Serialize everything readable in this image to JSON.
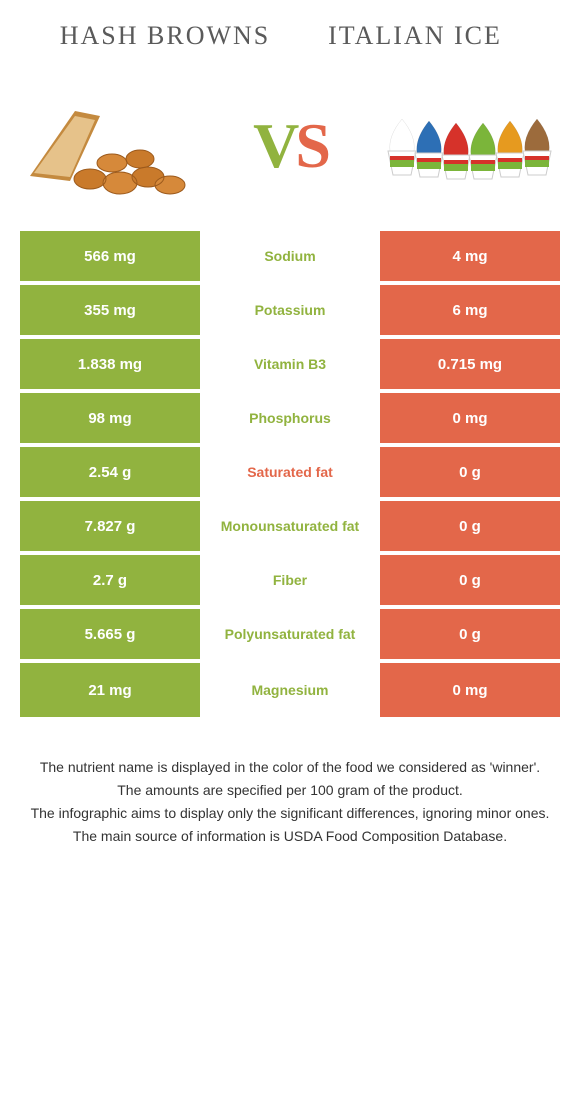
{
  "colors": {
    "left_bg": "#91b33f",
    "right_bg": "#e3674a",
    "row_border": "#ffffff",
    "cell_text": "#ffffff",
    "nutrient_left": "#91b33f",
    "nutrient_right": "#e3674a",
    "title_text": "#5a5a5a",
    "vs_v": "#91b33f",
    "vs_s": "#e3674a",
    "footer_text": "#333333"
  },
  "titles": {
    "left": "Hash browns",
    "right": "Italian ice"
  },
  "vs": {
    "v": "V",
    "s": "S"
  },
  "rows": [
    {
      "left": "566 mg",
      "label": "Sodium",
      "right": "4 mg",
      "winner": "left"
    },
    {
      "left": "355 mg",
      "label": "Potassium",
      "right": "6 mg",
      "winner": "left"
    },
    {
      "left": "1.838 mg",
      "label": "Vitamin B3",
      "right": "0.715 mg",
      "winner": "left"
    },
    {
      "left": "98 mg",
      "label": "Phosphorus",
      "right": "0 mg",
      "winner": "left"
    },
    {
      "left": "2.54 g",
      "label": "Saturated fat",
      "right": "0 g",
      "winner": "right"
    },
    {
      "left": "7.827 g",
      "label": "Monounsaturated fat",
      "right": "0 g",
      "winner": "left"
    },
    {
      "left": "2.7 g",
      "label": "Fiber",
      "right": "0 g",
      "winner": "left"
    },
    {
      "left": "5.665 g",
      "label": "Polyunsaturated fat",
      "right": "0 g",
      "winner": "left"
    },
    {
      "left": "21 mg",
      "label": "Magnesium",
      "right": "0 mg",
      "winner": "left"
    }
  ],
  "footer": [
    "The nutrient name is displayed in the color of the food we considered as 'winner'.",
    "The amounts are specified per 100 gram of the product.",
    "The infographic aims to display only the significant differences, ignoring minor ones.",
    "The main source of information is USDA Food Composition Database."
  ],
  "ice_colors": [
    "#ffffff",
    "#2d6fb5",
    "#d6322a",
    "#7bb53a",
    "#e69a1f",
    "#9c6b3c"
  ]
}
